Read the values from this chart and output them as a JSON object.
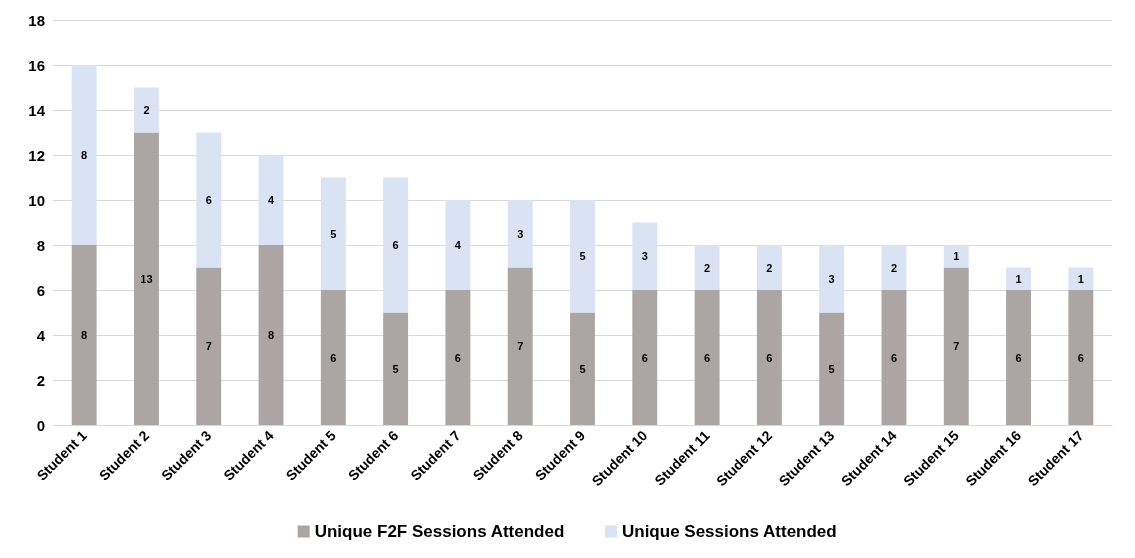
{
  "chart_data": {
    "type": "bar",
    "stacked": true,
    "categories": [
      "Student 1",
      "Student 2",
      "Student 3",
      "Student 4",
      "Student 5",
      "Student 6",
      "Student 7",
      "Student 8",
      "Student 9",
      "Student 10",
      "Student 11",
      "Student 12",
      "Student 13",
      "Student 14",
      "Student 15",
      "Student 16",
      "Student 17"
    ],
    "series": [
      {
        "name": "Unique F2F Sessions Attended",
        "color": "#aba6a3",
        "values": [
          8,
          13,
          7,
          8,
          6,
          5,
          6,
          7,
          5,
          6,
          6,
          6,
          5,
          6,
          7,
          6,
          6
        ]
      },
      {
        "name": "Unique Sessions Attended",
        "color": "#dae3f3",
        "values": [
          8,
          2,
          6,
          4,
          5,
          6,
          4,
          3,
          5,
          3,
          2,
          2,
          3,
          2,
          1,
          1,
          1
        ]
      }
    ],
    "ylim": [
      0,
      18
    ],
    "yticks": [
      0,
      2,
      4,
      6,
      8,
      10,
      12,
      14,
      16,
      18
    ],
    "grid": "y",
    "legend": "bottom",
    "data_labels": true
  }
}
